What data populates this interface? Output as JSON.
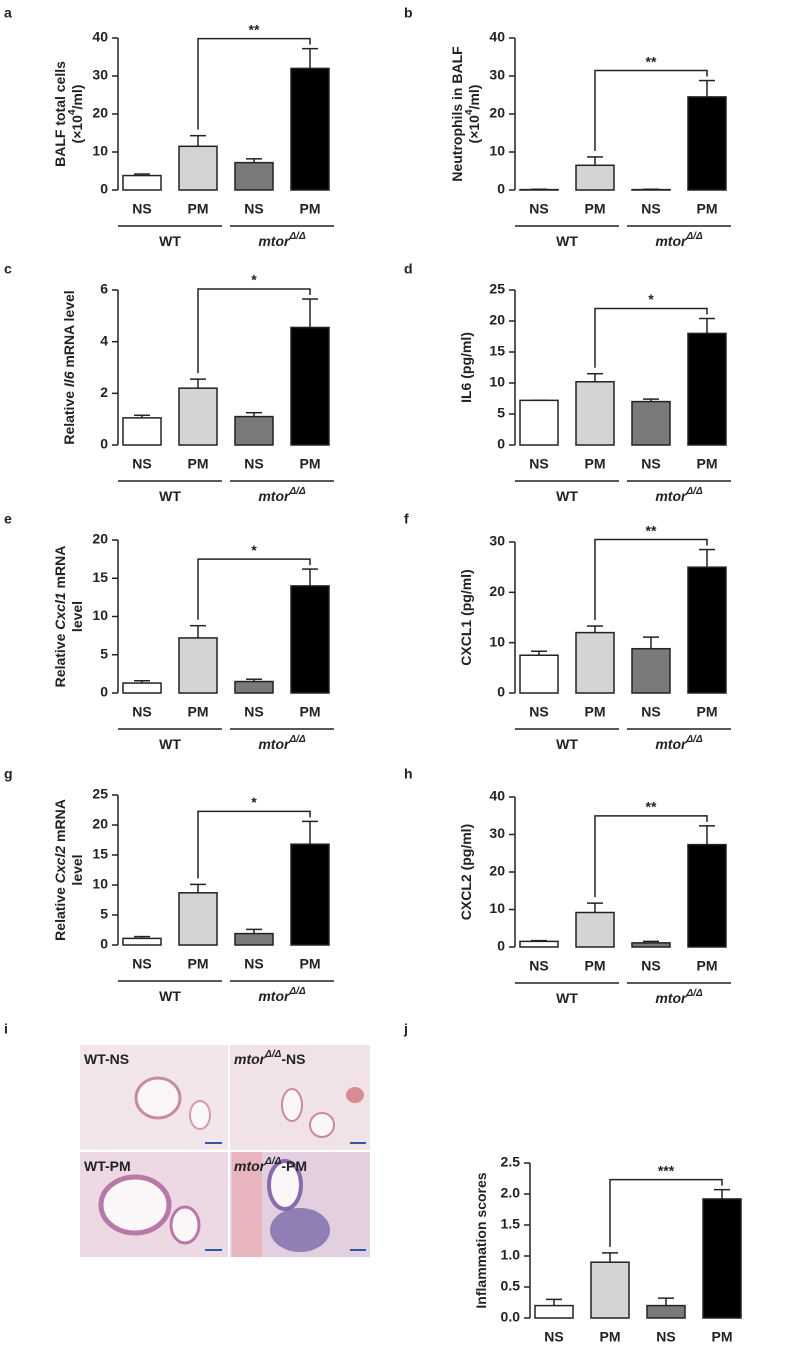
{
  "chart_data": [
    {
      "type": "bar",
      "panel": "a",
      "ylabel": [
        [
          {
            "text": "BALF total cells"
          }
        ],
        [
          {
            "text": "(×10"
          },
          {
            "text": "4",
            "sup": true
          },
          {
            "text": "/ml)"
          }
        ]
      ],
      "categories": [
        "NS",
        "PM",
        "NS",
        "PM"
      ],
      "groups": [
        [
          {
            "text": "WT"
          }
        ],
        [
          {
            "text": "mtor",
            "italic": true
          },
          {
            "text": "Δ/Δ",
            "italic": true,
            "sup": true
          }
        ]
      ],
      "values": [
        3.8,
        11.5,
        7.2,
        32
      ],
      "errors": [
        0.4,
        2.8,
        1.0,
        5.2
      ],
      "colors": [
        "#ffffff",
        "#d4d4d4",
        "#7a7a7a",
        "#000000"
      ],
      "ylim": [
        0,
        40
      ],
      "yticks": [
        0,
        10,
        20,
        30,
        40
      ],
      "significance": "**"
    },
    {
      "type": "bar",
      "panel": "b",
      "ylabel": [
        [
          {
            "text": "Neutrophils in BALF"
          }
        ],
        [
          {
            "text": "(×10"
          },
          {
            "text": "4",
            "sup": true
          },
          {
            "text": "/ml)"
          }
        ]
      ],
      "categories": [
        "NS",
        "PM",
        "NS",
        "PM"
      ],
      "groups": [
        [
          {
            "text": "WT"
          }
        ],
        [
          {
            "text": "mtor",
            "italic": true
          },
          {
            "text": "Δ/Δ",
            "italic": true,
            "sup": true
          }
        ]
      ],
      "values": [
        0.1,
        6.5,
        0.1,
        24.5
      ],
      "errors": [
        0.1,
        2.2,
        0.1,
        4.3
      ],
      "colors": [
        "#ffffff",
        "#d4d4d4",
        "#7a7a7a",
        "#000000"
      ],
      "ylim": [
        0,
        40
      ],
      "yticks": [
        0,
        10,
        20,
        30,
        40
      ],
      "significance": "**"
    },
    {
      "type": "bar",
      "panel": "c",
      "ylabel": [
        [
          {
            "text": "Relative "
          },
          {
            "text": "Il6",
            "italic": true
          },
          {
            "text": " mRNA level"
          }
        ]
      ],
      "categories": [
        "NS",
        "PM",
        "NS",
        "PM"
      ],
      "groups": [
        [
          {
            "text": "WT"
          }
        ],
        [
          {
            "text": "mtor",
            "italic": true
          },
          {
            "text": "Δ/Δ",
            "italic": true,
            "sup": true
          }
        ]
      ],
      "values": [
        1.05,
        2.2,
        1.1,
        4.55
      ],
      "errors": [
        0.1,
        0.35,
        0.15,
        1.1
      ],
      "colors": [
        "#ffffff",
        "#d4d4d4",
        "#7a7a7a",
        "#000000"
      ],
      "ylim": [
        0,
        6
      ],
      "yticks": [
        0,
        2,
        4,
        6
      ],
      "significance": "*"
    },
    {
      "type": "bar",
      "panel": "d",
      "ylabel": [
        [
          {
            "text": "IL6 (pg/ml)"
          }
        ]
      ],
      "categories": [
        "NS",
        "PM",
        "NS",
        "PM"
      ],
      "groups": [
        [
          {
            "text": "WT"
          }
        ],
        [
          {
            "text": "mtor",
            "italic": true
          },
          {
            "text": "Δ/Δ",
            "italic": true,
            "sup": true
          }
        ]
      ],
      "values": [
        7.2,
        10.2,
        7.0,
        18
      ],
      "errors": [
        0,
        1.3,
        0.4,
        2.4
      ],
      "colors": [
        "#ffffff",
        "#d4d4d4",
        "#7a7a7a",
        "#000000"
      ],
      "ylim": [
        0,
        25
      ],
      "yticks": [
        0,
        5,
        10,
        15,
        20,
        25
      ],
      "significance": "*"
    },
    {
      "type": "bar",
      "panel": "e",
      "ylabel": [
        [
          {
            "text": "Relative "
          },
          {
            "text": "Cxcl1",
            "italic": true
          },
          {
            "text": " mRNA"
          }
        ],
        [
          {
            "text": "level"
          }
        ]
      ],
      "categories": [
        "NS",
        "PM",
        "NS",
        "PM"
      ],
      "groups": [
        [
          {
            "text": "WT"
          }
        ],
        [
          {
            "text": "mtor",
            "italic": true
          },
          {
            "text": "Δ/Δ",
            "italic": true,
            "sup": true
          }
        ]
      ],
      "values": [
        1.3,
        7.2,
        1.5,
        14
      ],
      "errors": [
        0.3,
        1.6,
        0.3,
        2.2
      ],
      "colors": [
        "#ffffff",
        "#d4d4d4",
        "#7a7a7a",
        "#000000"
      ],
      "ylim": [
        0,
        20
      ],
      "yticks": [
        0,
        5,
        10,
        15,
        20
      ],
      "significance": "*"
    },
    {
      "type": "bar",
      "panel": "f",
      "ylabel": [
        [
          {
            "text": "CXCL1 (pg/ml)"
          }
        ]
      ],
      "categories": [
        "NS",
        "PM",
        "NS",
        "PM"
      ],
      "groups": [
        [
          {
            "text": "WT"
          }
        ],
        [
          {
            "text": "mtor",
            "italic": true
          },
          {
            "text": "Δ/Δ",
            "italic": true,
            "sup": true
          }
        ]
      ],
      "values": [
        7.5,
        12,
        8.8,
        25
      ],
      "errors": [
        0.8,
        1.3,
        2.3,
        3.5
      ],
      "colors": [
        "#ffffff",
        "#d4d4d4",
        "#7a7a7a",
        "#000000"
      ],
      "ylim": [
        0,
        30
      ],
      "yticks": [
        0,
        10,
        20,
        30
      ],
      "significance": "**"
    },
    {
      "type": "bar",
      "panel": "g",
      "ylabel": [
        [
          {
            "text": "Relative "
          },
          {
            "text": "Cxcl2",
            "italic": true
          },
          {
            "text": " mRNA"
          }
        ],
        [
          {
            "text": "level"
          }
        ]
      ],
      "categories": [
        "NS",
        "PM",
        "NS",
        "PM"
      ],
      "groups": [
        [
          {
            "text": "WT"
          }
        ],
        [
          {
            "text": "mtor",
            "italic": true
          },
          {
            "text": "Δ/Δ",
            "italic": true,
            "sup": true
          }
        ]
      ],
      "values": [
        1.1,
        8.7,
        1.9,
        16.8
      ],
      "errors": [
        0.3,
        1.4,
        0.7,
        3.8
      ],
      "colors": [
        "#ffffff",
        "#d4d4d4",
        "#7a7a7a",
        "#000000"
      ],
      "ylim": [
        0,
        25
      ],
      "yticks": [
        0,
        5,
        10,
        15,
        20,
        25
      ],
      "significance": "*"
    },
    {
      "type": "bar",
      "panel": "h",
      "ylabel": [
        [
          {
            "text": "CXCL2 (pg/ml)"
          }
        ]
      ],
      "categories": [
        "NS",
        "PM",
        "NS",
        "PM"
      ],
      "groups": [
        [
          {
            "text": "WT"
          }
        ],
        [
          {
            "text": "mtor",
            "italic": true
          },
          {
            "text": "Δ/Δ",
            "italic": true,
            "sup": true
          }
        ]
      ],
      "values": [
        1.5,
        9.2,
        1.1,
        27.3
      ],
      "errors": [
        0.2,
        2.5,
        0.4,
        5
      ],
      "colors": [
        "#ffffff",
        "#d4d4d4",
        "#7a7a7a",
        "#000000"
      ],
      "ylim": [
        0,
        40
      ],
      "yticks": [
        0,
        10,
        20,
        30,
        40
      ],
      "significance": "**"
    },
    {
      "type": "bar",
      "panel": "j",
      "ylabel": [
        [
          {
            "text": "Inflammation scores"
          }
        ]
      ],
      "categories": [
        "NS",
        "PM",
        "NS",
        "PM"
      ],
      "groups": [
        [
          {
            "text": "WT"
          }
        ],
        [
          {
            "text": "mtor",
            "italic": true
          },
          {
            "text": "Δ/Δ",
            "italic": true,
            "sup": true
          }
        ]
      ],
      "values": [
        0.2,
        0.9,
        0.2,
        1.92
      ],
      "errors": [
        0.1,
        0.15,
        0.12,
        0.15
      ],
      "colors": [
        "#ffffff",
        "#d4d4d4",
        "#7a7a7a",
        "#000000"
      ],
      "ylim": [
        0,
        2.5
      ],
      "yticks": [
        {
          "value": 0,
          "label": "0.0"
        },
        0.5,
        {
          "value": 1,
          "label": "1.0"
        },
        1.5,
        {
          "value": 2,
          "label": "2.0"
        },
        2.5
      ],
      "significance": "***"
    }
  ],
  "image_panel": {
    "panel": "i",
    "labels": [
      [
        {
          "text": "WT-NS"
        }
      ],
      [
        {
          "text": "mtor",
          "italic": true
        },
        {
          "text": "Δ/Δ",
          "italic": true,
          "sup": true
        },
        {
          "text": "-NS"
        }
      ],
      [
        {
          "text": "WT-PM"
        }
      ],
      [
        {
          "text": "mtor",
          "italic": true
        },
        {
          "text": "Δ/Δ",
          "italic": true,
          "sup": true
        },
        {
          "text": "-PM"
        }
      ]
    ]
  }
}
